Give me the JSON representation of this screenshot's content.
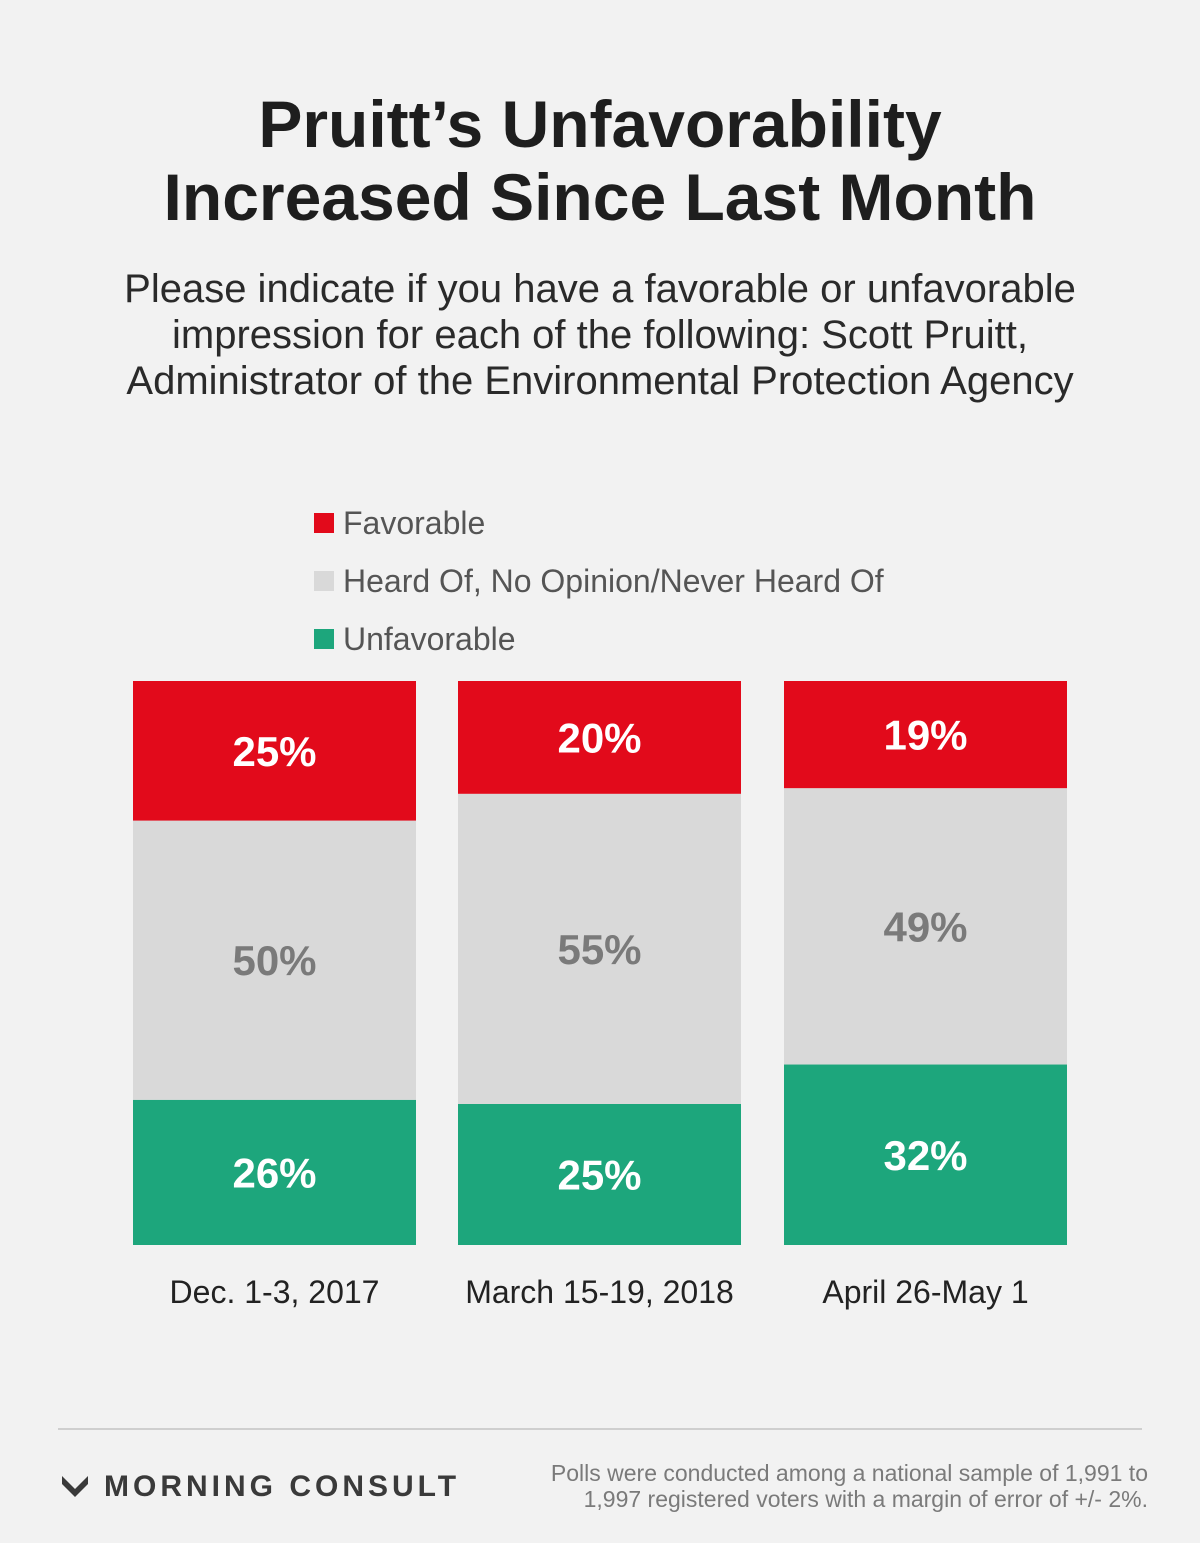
{
  "title_lines": [
    "Pruitt’s Unfavorability",
    "Increased Since Last Month"
  ],
  "subtitle_lines": [
    "Please indicate if you have a favorable or unfavorable",
    "impression for each of the following: Scott Pruitt,",
    "Administrator of the Environmental Protection Agency"
  ],
  "legend": {
    "items": [
      {
        "label": "Favorable",
        "color": "#e20a1b"
      },
      {
        "label": "Heard Of, No Opinion/Never Heard Of",
        "color": "#d9d9d9"
      },
      {
        "label": "Unfavorable",
        "color": "#1da67c"
      }
    ]
  },
  "chart_data": {
    "type": "bar",
    "stacked": true,
    "orientation": "vertical",
    "categories": [
      "Dec. 1-3, 2017",
      "March 15-19, 2018",
      "April 26-May 1"
    ],
    "series": [
      {
        "name": "Favorable",
        "values": [
          25,
          20,
          19
        ],
        "color": "#e20a1b",
        "label_color": "#ffffff"
      },
      {
        "name": "Heard Of, No Opinion/Never Heard Of",
        "values": [
          50,
          55,
          49
        ],
        "color": "#d9d9d9",
        "label_color": "#7a7a7a"
      },
      {
        "name": "Unfavorable",
        "values": [
          26,
          25,
          32
        ],
        "color": "#1da67c",
        "label_color": "#ffffff"
      }
    ],
    "value_suffix": "%",
    "stack_order": "Unfavorable at bottom, Favorable at top"
  },
  "footer": {
    "brand": "MORNING CONSULT",
    "note_lines": [
      "Polls were conducted among a national sample of 1,991 to",
      "1,997 registered voters with a margin of error of +/- 2%."
    ]
  }
}
